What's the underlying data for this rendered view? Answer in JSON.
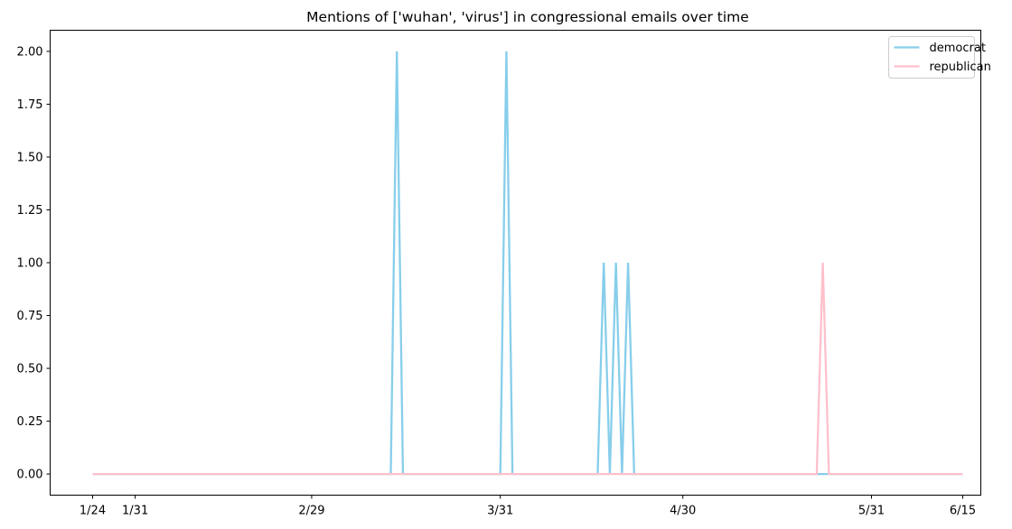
{
  "chart_data": {
    "type": "line",
    "title": "Mentions of ['wuhan', 'virus'] in congressional emails over time",
    "xlabel": "",
    "ylabel": "",
    "x_start": "2020-01-24",
    "x_end": "2020-06-15",
    "xticks": [
      {
        "date": "2020-01-24",
        "label": "1/24"
      },
      {
        "date": "2020-01-31",
        "label": "1/31"
      },
      {
        "date": "2020-02-29",
        "label": "2/29"
      },
      {
        "date": "2020-03-31",
        "label": "3/31"
      },
      {
        "date": "2020-04-30",
        "label": "4/30"
      },
      {
        "date": "2020-05-31",
        "label": "5/31"
      },
      {
        "date": "2020-06-15",
        "label": "6/15"
      }
    ],
    "yticks": [
      "0.00",
      "0.25",
      "0.50",
      "0.75",
      "1.00",
      "1.25",
      "1.50",
      "1.75",
      "2.00"
    ],
    "ylim": [
      -0.1,
      2.1
    ],
    "grid": false,
    "legend_position": "top-right",
    "series": [
      {
        "name": "democrat",
        "color": "#87ceeb",
        "points": [
          {
            "date": "2020-01-24",
            "value": 0
          },
          {
            "date": "2020-03-13",
            "value": 0
          },
          {
            "date": "2020-03-14",
            "value": 2
          },
          {
            "date": "2020-03-15",
            "value": 0
          },
          {
            "date": "2020-03-31",
            "value": 0
          },
          {
            "date": "2020-04-01",
            "value": 2
          },
          {
            "date": "2020-04-02",
            "value": 0
          },
          {
            "date": "2020-04-16",
            "value": 0
          },
          {
            "date": "2020-04-17",
            "value": 1
          },
          {
            "date": "2020-04-18",
            "value": 0
          },
          {
            "date": "2020-04-19",
            "value": 1
          },
          {
            "date": "2020-04-20",
            "value": 0
          },
          {
            "date": "2020-04-21",
            "value": 1
          },
          {
            "date": "2020-04-22",
            "value": 0
          },
          {
            "date": "2020-06-15",
            "value": 0
          }
        ]
      },
      {
        "name": "republican",
        "color": "#ffc0cb",
        "points": [
          {
            "date": "2020-01-24",
            "value": 0
          },
          {
            "date": "2020-05-22",
            "value": 0
          },
          {
            "date": "2020-05-23",
            "value": 1
          },
          {
            "date": "2020-05-24",
            "value": 0
          },
          {
            "date": "2020-06-15",
            "value": 0
          }
        ]
      }
    ]
  }
}
